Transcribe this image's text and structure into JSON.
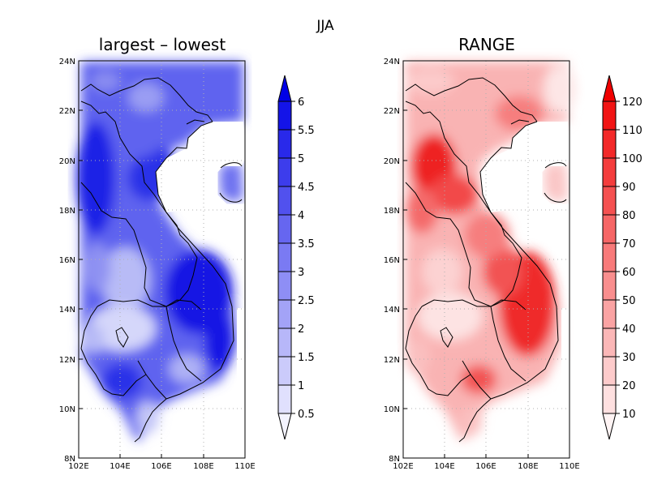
{
  "figure": {
    "title": "JJA"
  },
  "map": {
    "lon_range": [
      102,
      110
    ],
    "lat_range": [
      8,
      24
    ],
    "x_ticks": [
      "102E",
      "104E",
      "106E",
      "108E",
      "110E"
    ],
    "y_ticks": [
      "8N",
      "10N",
      "12N",
      "14N",
      "16N",
      "18N",
      "20N",
      "22N",
      "24N"
    ],
    "gridlines": "dotted"
  },
  "panels": [
    {
      "title": "largest – lowest",
      "colormap": "blues",
      "color_lowest": "#f4f4ff",
      "color_highest": "#0000e6",
      "colorbar_levels": [
        "0.5",
        "1",
        "1.5",
        "2",
        "2.5",
        "3",
        "3.5",
        "4",
        "4.5",
        "5",
        "5.5",
        "6"
      ]
    },
    {
      "title": "RANGE",
      "colormap": "reds",
      "color_lowest": "#fff4f4",
      "color_highest": "#f00000",
      "colorbar_levels": [
        "10",
        "20",
        "30",
        "40",
        "50",
        "60",
        "70",
        "80",
        "90",
        "100",
        "110",
        "120"
      ]
    }
  ],
  "chart_data": [
    {
      "type": "heatmap",
      "title": "largest – lowest",
      "region_lon": [
        102,
        110
      ],
      "region_lat": [
        8,
        24
      ],
      "levels": [
        0.5,
        1,
        1.5,
        2,
        2.5,
        3,
        3.5,
        4,
        4.5,
        5,
        5.5,
        6
      ],
      "extends": "both"
    },
    {
      "type": "heatmap",
      "title": "RANGE",
      "region_lon": [
        102,
        110
      ],
      "region_lat": [
        8,
        24
      ],
      "levels": [
        10,
        20,
        30,
        40,
        50,
        60,
        70,
        80,
        90,
        100,
        110,
        120
      ],
      "extends": "both"
    }
  ]
}
